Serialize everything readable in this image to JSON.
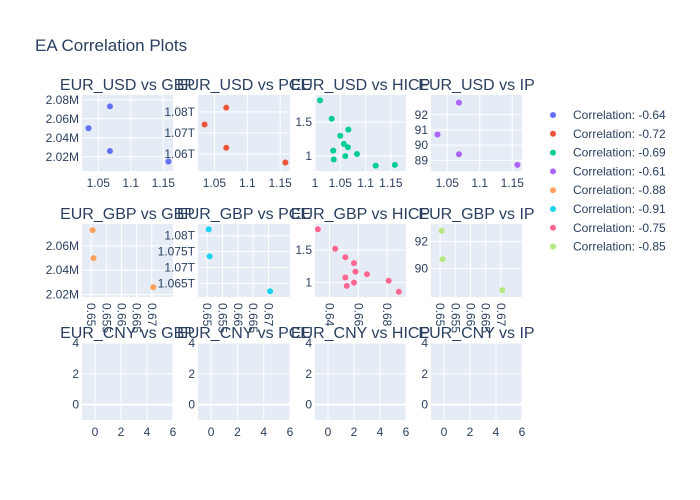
{
  "title": "EA Correlation Plots",
  "legend": {
    "position": "right",
    "items": [
      {
        "label": "Correlation: -0.64",
        "color": "#636efa"
      },
      {
        "label": "Correlation: -0.72",
        "color": "#EF553B"
      },
      {
        "label": "Correlation: -0.69",
        "color": "#00cc96"
      },
      {
        "label": "Correlation: -0.61",
        "color": "#ab63fa"
      },
      {
        "label": "Correlation: -0.88",
        "color": "#FFA15A"
      },
      {
        "label": "Correlation: -0.91",
        "color": "#19d3f3"
      },
      {
        "label": "Correlation: -0.75",
        "color": "#FF6692"
      },
      {
        "label": "Correlation: -0.85",
        "color": "#B6E880"
      }
    ]
  },
  "chart_data": [
    {
      "type": "scatter",
      "title": "EUR_USD vs GBP",
      "grid": true,
      "color": "#636efa",
      "xlim": [
        1.025,
        1.165
      ],
      "ylim": [
        2.005,
        2.085
      ],
      "xticks": [
        {
          "v": 1.05,
          "label": "1.05"
        },
        {
          "v": 1.1,
          "label": "1.1"
        },
        {
          "v": 1.15,
          "label": "1.15"
        }
      ],
      "yticks": [
        {
          "v": 2.02,
          "label": "2.02M"
        },
        {
          "v": 2.04,
          "label": "2.04M"
        },
        {
          "v": 2.06,
          "label": "2.06M"
        },
        {
          "v": 2.08,
          "label": "2.08M"
        }
      ],
      "xtick_rotation": 0,
      "points": [
        [
          1.035,
          2.05
        ],
        [
          1.068,
          2.073
        ],
        [
          1.068,
          2.026
        ],
        [
          1.158,
          2.015
        ]
      ]
    },
    {
      "type": "scatter",
      "title": "EUR_USD vs PCE",
      "grid": true,
      "color": "#EF553B",
      "xlim": [
        1.025,
        1.165
      ],
      "ylim": [
        1.052,
        1.088
      ],
      "xticks": [
        {
          "v": 1.05,
          "label": "1.05"
        },
        {
          "v": 1.1,
          "label": "1.1"
        },
        {
          "v": 1.15,
          "label": "1.15"
        }
      ],
      "yticks": [
        {
          "v": 1.06,
          "label": "1.06T"
        },
        {
          "v": 1.07,
          "label": "1.07T"
        },
        {
          "v": 1.08,
          "label": "1.08T"
        }
      ],
      "xtick_rotation": 0,
      "points": [
        [
          1.035,
          1.074
        ],
        [
          1.068,
          1.082
        ],
        [
          1.068,
          1.063
        ],
        [
          1.158,
          1.056
        ]
      ]
    },
    {
      "type": "scatter",
      "title": "EUR_USD vs HICP",
      "grid": true,
      "color": "#00cc96",
      "xlim": [
        1.0,
        1.18
      ],
      "ylim": [
        0.78,
        1.9
      ],
      "xticks": [
        {
          "v": 1.0,
          "label": "1"
        },
        {
          "v": 1.05,
          "label": "1.05"
        },
        {
          "v": 1.1,
          "label": "1.1"
        },
        {
          "v": 1.15,
          "label": "1.15"
        }
      ],
      "yticks": [
        {
          "v": 1.0,
          "label": "1"
        },
        {
          "v": 1.5,
          "label": "1.5"
        }
      ],
      "xtick_rotation": 0,
      "points": [
        [
          1.01,
          1.82
        ],
        [
          1.033,
          1.55
        ],
        [
          1.036,
          1.08
        ],
        [
          1.037,
          0.95
        ],
        [
          1.05,
          1.3
        ],
        [
          1.057,
          1.18
        ],
        [
          1.06,
          1.0
        ],
        [
          1.065,
          1.13
        ],
        [
          1.066,
          1.39
        ],
        [
          1.083,
          1.03
        ],
        [
          1.12,
          0.86
        ],
        [
          1.158,
          0.87
        ]
      ]
    },
    {
      "type": "scatter",
      "title": "EUR_USD vs IP",
      "grid": true,
      "color": "#ab63fa",
      "xlim": [
        1.025,
        1.165
      ],
      "ylim": [
        88.3,
        93.3
      ],
      "xticks": [
        {
          "v": 1.05,
          "label": "1.05"
        },
        {
          "v": 1.1,
          "label": "1.1"
        },
        {
          "v": 1.15,
          "label": "1.15"
        }
      ],
      "yticks": [
        {
          "v": 89,
          "label": "89"
        },
        {
          "v": 90,
          "label": "90"
        },
        {
          "v": 91,
          "label": "91"
        },
        {
          "v": 92,
          "label": "92"
        }
      ],
      "xtick_rotation": 0,
      "points": [
        [
          1.035,
          90.7
        ],
        [
          1.068,
          92.8
        ],
        [
          1.068,
          89.4
        ],
        [
          1.158,
          88.7
        ]
      ]
    },
    {
      "type": "scatter",
      "title": "EUR_GBP vs GBP",
      "grid": true,
      "color": "#FFA15A",
      "xlim": [
        0.647,
        0.677
      ],
      "ylim": [
        2.018,
        2.078
      ],
      "xticks": [
        {
          "v": 0.65,
          "label": "0.65"
        },
        {
          "v": 0.655,
          "label": "0.655"
        },
        {
          "v": 0.66,
          "label": "0.66"
        },
        {
          "v": 0.665,
          "label": "0.665"
        },
        {
          "v": 0.67,
          "label": "0.67"
        }
      ],
      "yticks": [
        {
          "v": 2.02,
          "label": "2.02M"
        },
        {
          "v": 2.04,
          "label": "2.04M"
        },
        {
          "v": 2.06,
          "label": "2.06M"
        }
      ],
      "xtick_rotation": 90,
      "points": [
        [
          0.6505,
          2.073
        ],
        [
          0.6508,
          2.05
        ],
        [
          0.6705,
          2.026
        ]
      ]
    },
    {
      "type": "scatter",
      "title": "EUR_GBP vs PCE",
      "grid": true,
      "color": "#19d3f3",
      "xlim": [
        0.647,
        0.677
      ],
      "ylim": [
        1.0607,
        1.0837
      ],
      "xticks": [
        {
          "v": 0.65,
          "label": "0.65"
        },
        {
          "v": 0.655,
          "label": "0.655"
        },
        {
          "v": 0.66,
          "label": "0.66"
        },
        {
          "v": 0.665,
          "label": "0.665"
        },
        {
          "v": 0.67,
          "label": "0.67"
        }
      ],
      "yticks": [
        {
          "v": 1.065,
          "label": "1.065T"
        },
        {
          "v": 1.07,
          "label": "1.07T"
        },
        {
          "v": 1.075,
          "label": "1.075T"
        },
        {
          "v": 1.08,
          "label": "1.08T"
        }
      ],
      "xtick_rotation": 90,
      "points": [
        [
          0.6505,
          1.082
        ],
        [
          0.6508,
          1.0735
        ],
        [
          0.6705,
          1.0625
        ]
      ]
    },
    {
      "type": "scatter",
      "title": "EUR_GBP vs HICP",
      "grid": true,
      "color": "#FF6692",
      "xlim": [
        0.63,
        0.693
      ],
      "ylim": [
        0.78,
        1.9
      ],
      "xticks": [
        {
          "v": 0.64,
          "label": "0.64"
        },
        {
          "v": 0.66,
          "label": "0.66"
        },
        {
          "v": 0.68,
          "label": "0.68"
        }
      ],
      "yticks": [
        {
          "v": 1.0,
          "label": "1"
        },
        {
          "v": 1.5,
          "label": "1.5"
        }
      ],
      "xtick_rotation": 90,
      "points": [
        [
          0.632,
          1.82
        ],
        [
          0.644,
          1.52
        ],
        [
          0.651,
          1.39
        ],
        [
          0.651,
          1.08
        ],
        [
          0.652,
          0.95
        ],
        [
          0.657,
          1.3
        ],
        [
          0.657,
          1.0
        ],
        [
          0.658,
          1.17
        ],
        [
          0.666,
          1.13
        ],
        [
          0.681,
          1.03
        ],
        [
          0.688,
          0.86
        ]
      ]
    },
    {
      "type": "scatter",
      "title": "EUR_GBP vs IP",
      "grid": true,
      "color": "#B6E880",
      "xlim": [
        0.647,
        0.677
      ],
      "ylim": [
        87.9,
        93.3
      ],
      "xticks": [
        {
          "v": 0.65,
          "label": "0.65"
        },
        {
          "v": 0.655,
          "label": "0.655"
        },
        {
          "v": 0.66,
          "label": "0.66"
        },
        {
          "v": 0.665,
          "label": "0.665"
        },
        {
          "v": 0.67,
          "label": "0.67"
        }
      ],
      "yticks": [
        {
          "v": 90,
          "label": "90"
        },
        {
          "v": 92,
          "label": "92"
        }
      ],
      "xtick_rotation": 90,
      "points": [
        [
          0.6505,
          92.8
        ],
        [
          0.6508,
          90.7
        ],
        [
          0.6705,
          88.4
        ]
      ]
    },
    {
      "type": "scatter",
      "title": "EUR_CNY vs GBP",
      "grid": true,
      "color": "#636efa",
      "xlim": [
        -1,
        6
      ],
      "ylim": [
        -1,
        4
      ],
      "xticks": [
        {
          "v": 0,
          "label": "0"
        },
        {
          "v": 2,
          "label": "2"
        },
        {
          "v": 4,
          "label": "4"
        },
        {
          "v": 6,
          "label": "6"
        }
      ],
      "yticks": [
        {
          "v": 0,
          "label": "0"
        },
        {
          "v": 2,
          "label": "2"
        },
        {
          "v": 4,
          "label": "4"
        }
      ],
      "xtick_rotation": 0,
      "points": []
    },
    {
      "type": "scatter",
      "title": "EUR_CNY vs PCE",
      "grid": true,
      "color": "#636efa",
      "xlim": [
        -1,
        6
      ],
      "ylim": [
        -1,
        4
      ],
      "xticks": [
        {
          "v": 0,
          "label": "0"
        },
        {
          "v": 2,
          "label": "2"
        },
        {
          "v": 4,
          "label": "4"
        },
        {
          "v": 6,
          "label": "6"
        }
      ],
      "yticks": [
        {
          "v": 0,
          "label": "0"
        },
        {
          "v": 2,
          "label": "2"
        },
        {
          "v": 4,
          "label": "4"
        }
      ],
      "xtick_rotation": 0,
      "points": []
    },
    {
      "type": "scatter",
      "title": "EUR_CNY vs HICP",
      "grid": true,
      "color": "#636efa",
      "xlim": [
        -1,
        6
      ],
      "ylim": [
        -1,
        4
      ],
      "xticks": [
        {
          "v": 0,
          "label": "0"
        },
        {
          "v": 2,
          "label": "2"
        },
        {
          "v": 4,
          "label": "4"
        },
        {
          "v": 6,
          "label": "6"
        }
      ],
      "yticks": [
        {
          "v": 0,
          "label": "0"
        },
        {
          "v": 2,
          "label": "2"
        },
        {
          "v": 4,
          "label": "4"
        }
      ],
      "xtick_rotation": 0,
      "points": []
    },
    {
      "type": "scatter",
      "title": "EUR_CNY vs IP",
      "grid": true,
      "color": "#636efa",
      "xlim": [
        -1,
        6
      ],
      "ylim": [
        -1,
        4
      ],
      "xticks": [
        {
          "v": 0,
          "label": "0"
        },
        {
          "v": 2,
          "label": "2"
        },
        {
          "v": 4,
          "label": "4"
        },
        {
          "v": 6,
          "label": "6"
        }
      ],
      "yticks": [
        {
          "v": 0,
          "label": "0"
        },
        {
          "v": 2,
          "label": "2"
        },
        {
          "v": 4,
          "label": "4"
        }
      ],
      "xtick_rotation": 0,
      "points": []
    }
  ]
}
